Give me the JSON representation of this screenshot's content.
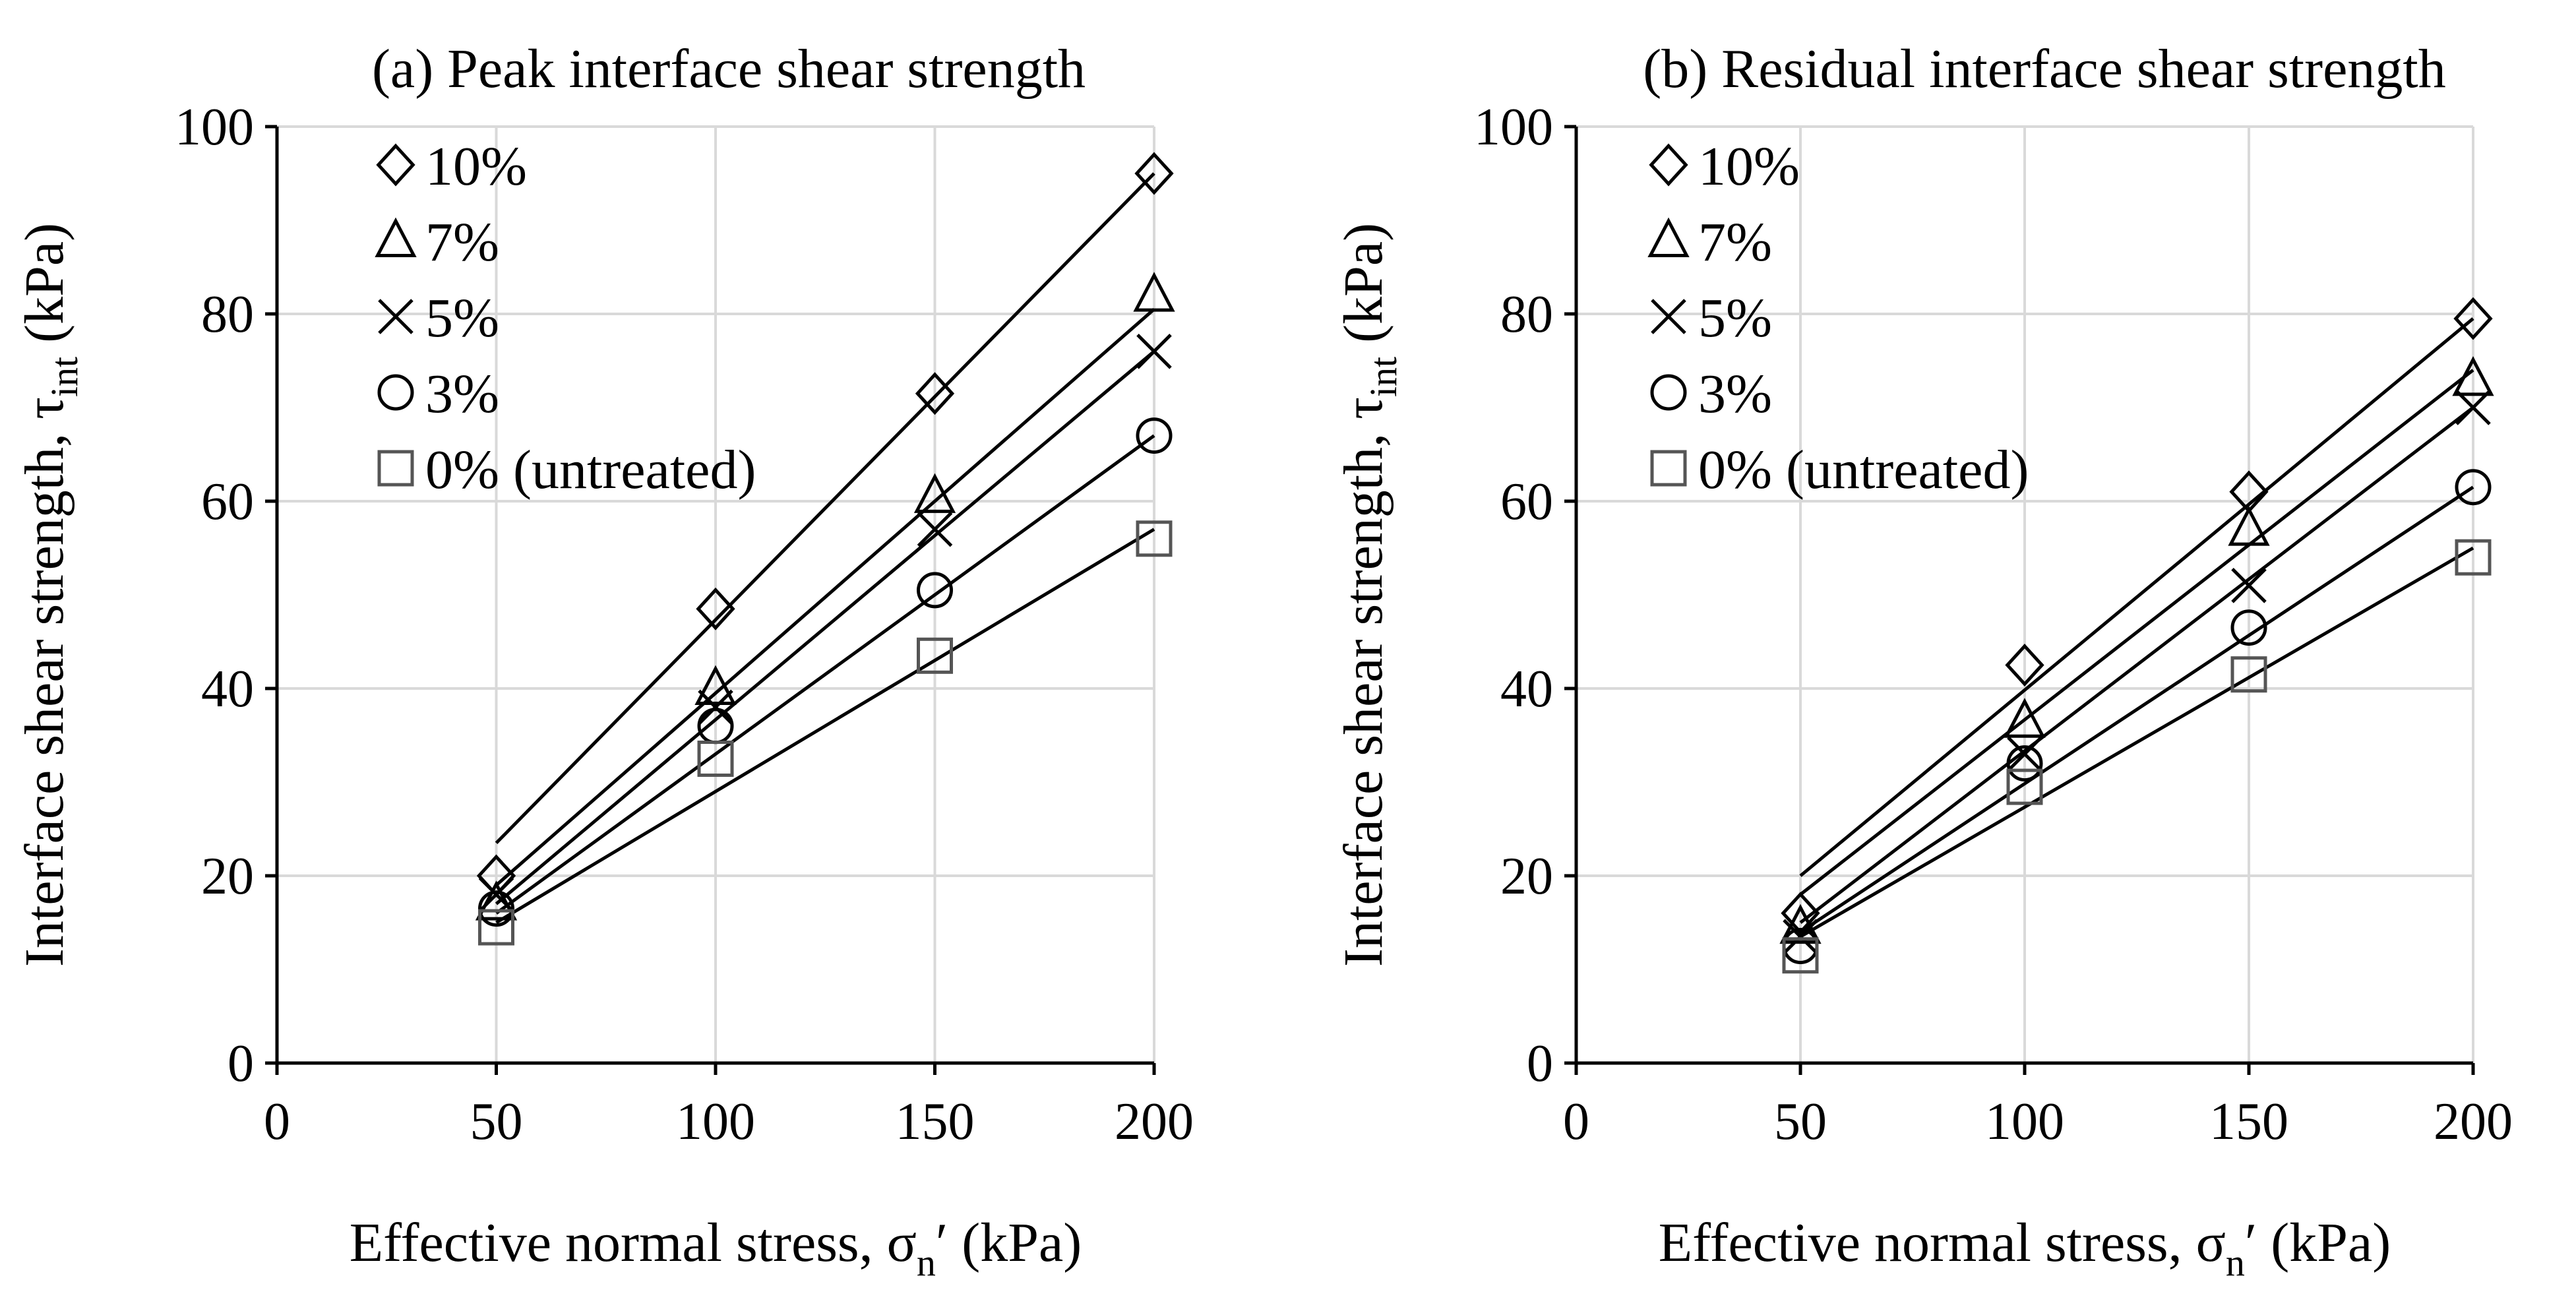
{
  "chart_data": [
    {
      "type": "scatter",
      "title": "(a) Peak interface shear strength",
      "xlabel": "Effective normal stress, σ",
      "xlabel_sub": "n",
      "xlabel_tail": "′ (kPa)",
      "ylabel": "Interface shear strength, τ",
      "ylabel_sub": "int",
      "ylabel_tail": " (kPa)",
      "xlim": [
        0,
        200
      ],
      "ylim": [
        0,
        100
      ],
      "xticks": [
        0,
        50,
        100,
        150,
        200
      ],
      "yticks": [
        0,
        20,
        40,
        60,
        80,
        100
      ],
      "x": [
        50,
        100,
        150,
        200
      ],
      "grid": true,
      "legend_position": "top-left",
      "series": [
        {
          "name": "10%",
          "marker": "diamond",
          "values": [
            20,
            48.5,
            71.5,
            95
          ],
          "fit": [
            [
              50,
              23.5
            ],
            [
              200,
              95
            ]
          ]
        },
        {
          "name": "7%",
          "marker": "triangle",
          "values": [
            17,
            40,
            60.5,
            82
          ],
          "fit": [
            [
              50,
              19
            ],
            [
              200,
              80.5
            ]
          ]
        },
        {
          "name": "5%",
          "marker": "cross",
          "values": [
            18,
            38,
            57,
            76
          ],
          "fit": [
            [
              50,
              17
            ],
            [
              200,
              76
            ]
          ]
        },
        {
          "name": "3%",
          "marker": "circle",
          "values": [
            16.5,
            36,
            50.5,
            67
          ],
          "fit": [
            [
              50,
              16
            ],
            [
              200,
              67
            ]
          ]
        },
        {
          "name": "0% (untreated)",
          "marker": "square",
          "values": [
            14.5,
            32.5,
            43.5,
            56
          ],
          "fit": [
            [
              50,
              15
            ],
            [
              200,
              57
            ]
          ]
        }
      ]
    },
    {
      "type": "scatter",
      "title": "(b) Residual interface shear strength",
      "xlabel": "Effective normal stress, σ",
      "xlabel_sub": "n",
      "xlabel_tail": "′ (kPa)",
      "ylabel": "Interface shear strength, τ",
      "ylabel_sub": "int",
      "ylabel_tail": " (kPa)",
      "xlim": [
        0,
        200
      ],
      "ylim": [
        0,
        100
      ],
      "xticks": [
        0,
        50,
        100,
        150,
        200
      ],
      "yticks": [
        0,
        20,
        40,
        60,
        80,
        100
      ],
      "x": [
        50,
        100,
        150,
        200
      ],
      "grid": true,
      "legend_position": "top-left",
      "series": [
        {
          "name": "10%",
          "marker": "diamond",
          "values": [
            16,
            42.5,
            61,
            79.5
          ],
          "fit": [
            [
              50,
              20
            ],
            [
              200,
              79.5
            ]
          ]
        },
        {
          "name": "7%",
          "marker": "triangle",
          "values": [
            14.5,
            36.5,
            57,
            73
          ],
          "fit": [
            [
              50,
              18
            ],
            [
              200,
              74
            ]
          ]
        },
        {
          "name": "5%",
          "marker": "cross",
          "values": [
            13.5,
            33,
            51,
            70
          ],
          "fit": [
            [
              50,
              15
            ],
            [
              200,
              70
            ]
          ]
        },
        {
          "name": "3%",
          "marker": "circle",
          "values": [
            12.5,
            32,
            46.5,
            61.5
          ],
          "fit": [
            [
              50,
              14
            ],
            [
              200,
              61.5
            ]
          ]
        },
        {
          "name": "0% (untreated)",
          "marker": "square",
          "values": [
            11.5,
            29.5,
            41.5,
            54
          ],
          "fit": [
            [
              50,
              13.5
            ],
            [
              200,
              55
            ]
          ]
        }
      ]
    }
  ]
}
